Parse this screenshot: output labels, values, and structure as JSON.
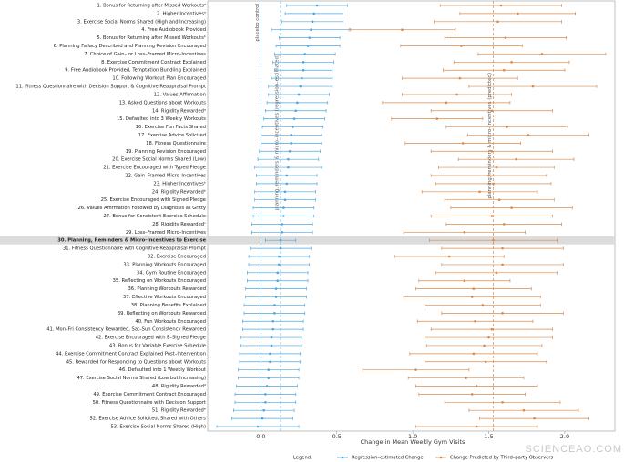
{
  "chart_data": {
    "type": "forest",
    "x_label": "Change in Mean Weekly Gym Visits",
    "legend_title": "Legend:",
    "watermark": "SCIENCEAO.COM",
    "categories": [
      "1. Bonus for Returning after Missed Workoutsᵃ",
      "2. Higher Incentivesᵃ",
      "3. Exercise Social Norms Shared (High and Increasing)",
      "4. Free Audiobook Provided",
      "5. Bonus for Returning after Missed Workoutsᵇ",
      "6. Planning Fallacy Described and Planning Revision Encouraged",
      "7. Choice of Gain– or Loss–Framed Micro–Incentives",
      "8. Exercise Commitment Contract Explained",
      "9. Free Audiobook Provided, Temptation Bundling Explained",
      "10. Following Workout Plan Encouraged",
      "11. Fitness Questionnaire with Decision Support & Cognitive Reappraisal Prompt",
      "12. Values Affirmation",
      "13. Asked Questions about Workouts",
      "14. Rigidity Rewardedᵃ",
      "15. Defaulted into 3 Weekly Workouts",
      "16. Exercise Fun Facts Shared",
      "17. Exercise Advice Solicited",
      "18. Fitness Questionnaire",
      "19. Planning Revision Encouraged",
      "20. Exercise Social Norms Shared (Low)",
      "21. Exercise Encouraged with Typed Pledge",
      "22. Gain–Framed Micro–Incentives",
      "23. Higher Incentivesᵇ",
      "24. Rigidity Rewardedᵇ",
      "25. Exercise Encouraged with Signed Pledge",
      "26. Values Affirmation Followed by Diagnosis as Gritty",
      "27. Bonus for Consistent Exercise Schedule",
      "28. Rigidity Rewardedᶜ",
      "29. Loss–Framed Micro–Incentives",
      "30. Planning, Reminders & Micro–Incentives to Exercise",
      "31. Fitness Questionnaire with Cognitive Reappraisal Prompt",
      "32. Exercise Encouraged",
      "33. Planning Workouts Encouraged",
      "34. Gym Routine Encouraged",
      "35. Reflecting on Workouts Encouraged",
      "36. Planning Workouts Rewarded",
      "37. Effective Workouts Encouraged",
      "38. Planning Benefits Explained",
      "39. Reflecting on Workouts Rewarded",
      "40. Fun Workouts Encouraged",
      "41. Mon–Fri Consistency Rewarded, Sat–Sun Consistency Rewarded",
      "42. Exercise Encouraged with E–Signed Pledge",
      "43. Bonus for Variable Exercise Schedule",
      "44. Exercise Commitment Contract Explained Post–Intervention",
      "45. Rewarded for Responding to Questions about Workouts",
      "46. Defaulted into 1 Weekly Workout",
      "47. Exercise Social Norms Shared (Low but Increasing)",
      "48. Rigidity Rewardedᵈ",
      "49. Exercise Commitment Contract Encouraged",
      "50. Fitness Questionnaire with Decision Support",
      "51. Rigidity Rewardedᵉ",
      "52. Exercise Advice Solicited, Shared with Others",
      "53. Exercise Social Norms Shared (High)"
    ],
    "highlight_index": 29,
    "series": [
      {
        "name": "Regression–estimated Change",
        "color": "#4ea6dc",
        "values": [
          0.37,
          0.35,
          0.34,
          0.33,
          0.32,
          0.31,
          0.29,
          0.28,
          0.28,
          0.27,
          0.26,
          0.25,
          0.24,
          0.23,
          0.22,
          0.21,
          0.2,
          0.2,
          0.19,
          0.18,
          0.18,
          0.17,
          0.17,
          0.16,
          0.16,
          0.15,
          0.15,
          0.14,
          0.14,
          0.13,
          0.13,
          0.12,
          0.12,
          0.11,
          0.11,
          0.1,
          0.1,
          0.09,
          0.09,
          0.08,
          0.08,
          0.07,
          0.07,
          0.06,
          0.06,
          0.05,
          0.05,
          0.04,
          0.03,
          0.03,
          0.02,
          0.01,
          -0.02
        ],
        "errors": [
          0.2,
          0.19,
          0.2,
          0.26,
          0.2,
          0.21,
          0.2,
          0.2,
          0.19,
          0.2,
          0.21,
          0.2,
          0.2,
          0.2,
          0.2,
          0.2,
          0.2,
          0.2,
          0.2,
          0.2,
          0.22,
          0.2,
          0.2,
          0.2,
          0.2,
          0.2,
          0.2,
          0.2,
          0.2,
          0.1,
          0.2,
          0.2,
          0.2,
          0.2,
          0.2,
          0.2,
          0.2,
          0.2,
          0.2,
          0.2,
          0.2,
          0.2,
          0.2,
          0.2,
          0.2,
          0.2,
          0.2,
          0.2,
          0.2,
          0.2,
          0.2,
          0.2,
          0.27
        ]
      },
      {
        "name": "Change Predicted by Third–party Observers",
        "color": "#d98a4a",
        "values": [
          1.58,
          1.69,
          1.56,
          0.93,
          1.61,
          1.32,
          1.85,
          1.65,
          1.6,
          1.31,
          1.79,
          1.29,
          1.22,
          1.52,
          1.16,
          1.62,
          1.76,
          1.33,
          1.52,
          1.68,
          1.55,
          1.5,
          1.53,
          1.44,
          1.57,
          1.65,
          1.52,
          1.6,
          1.34,
          1.53,
          1.59,
          1.24,
          1.59,
          1.55,
          1.34,
          1.4,
          1.39,
          1.46,
          1.59,
          1.41,
          1.52,
          1.5,
          1.47,
          1.4,
          1.48,
          1.02,
          1.35,
          1.42,
          1.39,
          1.59,
          1.73,
          1.8,
          1.42
        ],
        "errors": [
          0.4,
          0.38,
          0.42,
          0.35,
          0.4,
          0.4,
          0.42,
          0.38,
          0.4,
          0.38,
          0.42,
          0.36,
          0.42,
          0.4,
          0.3,
          0.4,
          0.4,
          0.38,
          0.4,
          0.38,
          0.38,
          0.38,
          0.38,
          0.38,
          0.36,
          0.4,
          0.4,
          0.38,
          0.4,
          0.42,
          0.4,
          0.36,
          0.4,
          0.4,
          0.3,
          0.38,
          0.45,
          0.38,
          0.4,
          0.38,
          0.4,
          0.42,
          0.38,
          0.42,
          0.4,
          0.35,
          0.38,
          0.4,
          0.35,
          0.38,
          0.36,
          0.36,
          0.4
        ]
      }
    ],
    "reference_lines": [
      {
        "value": 0,
        "label": "placebo control",
        "color": "#4ea6dc"
      },
      {
        "value": 0.13,
        "label": "planning, reminders & micro–incentives (regression–estimated)",
        "color": "#4ea6dc"
      },
      {
        "value": 1.53,
        "label": "planning, reminders & micro–incentives (predicted)",
        "color": "#d98a4a"
      }
    ],
    "xlim": [
      -0.35,
      2.33
    ],
    "xticks": [
      {
        "value": 0,
        "label": "0.0"
      },
      {
        "value": 0.5,
        "label": "0.5"
      },
      {
        "value": 1,
        "label": "1.0"
      },
      {
        "value": 1.5,
        "label": "1.5"
      },
      {
        "value": 2,
        "label": "2.0"
      }
    ]
  }
}
